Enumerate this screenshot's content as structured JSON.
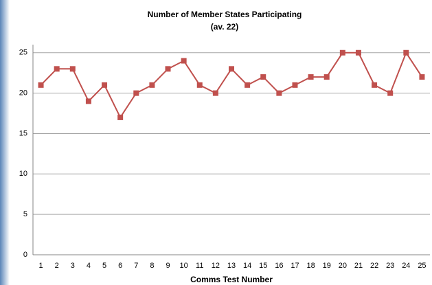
{
  "chart_data": {
    "type": "line",
    "title": "Number of Member States Participating",
    "subtitle": "(av. 22)",
    "x_label": "Comms Test Number",
    "categories": [
      "1",
      "2",
      "3",
      "4",
      "5",
      "6",
      "7",
      "8",
      "9",
      "10",
      "11",
      "12",
      "13",
      "14",
      "15",
      "16",
      "17",
      "18",
      "19",
      "20",
      "21",
      "22",
      "23",
      "24",
      "25"
    ],
    "values": [
      21,
      23,
      23,
      19,
      21,
      17,
      20,
      21,
      23,
      24,
      21,
      20,
      23,
      21,
      22,
      20,
      21,
      22,
      22,
      25,
      25,
      21,
      20,
      25,
      22
    ],
    "color": "#c0504d",
    "ylim": [
      0,
      26
    ],
    "yticks": [
      0,
      5,
      10,
      15,
      20,
      25
    ],
    "grid": true
  }
}
